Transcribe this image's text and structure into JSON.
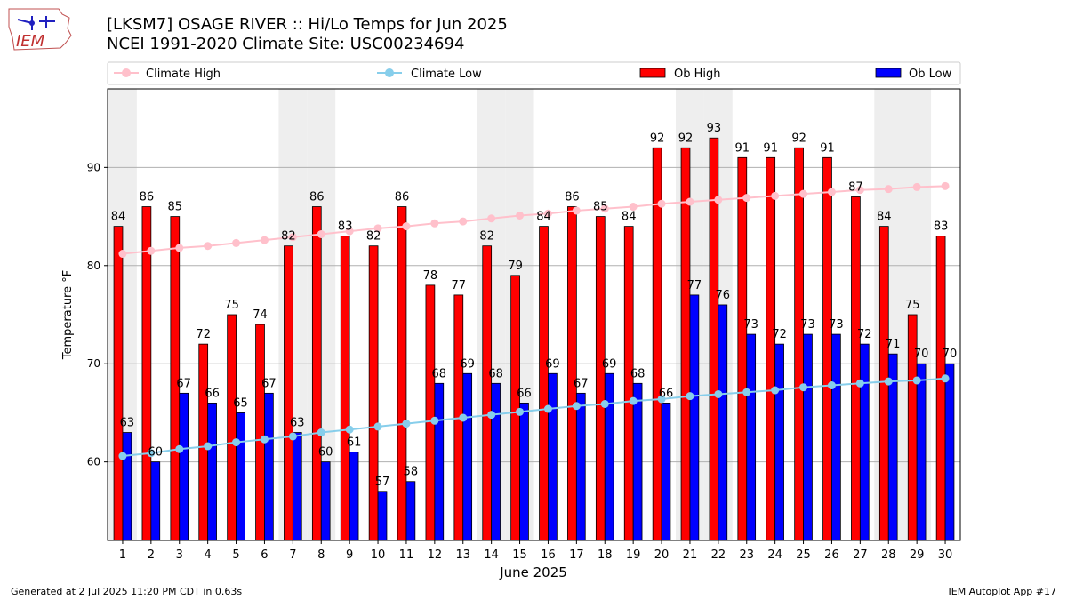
{
  "header": {
    "title_line1": "[LKSM7] OSAGE RIVER :: Hi/Lo Temps for Jun 2025",
    "title_line2": "NCEI 1991-2020 Climate Site: USC00234694",
    "logo_text": "IEM"
  },
  "footer": {
    "generated": "Generated at 2 Jul 2025 11:20 PM CDT in 0.63s",
    "app": "IEM Autoplot App #17"
  },
  "colors": {
    "climate_high": "#ffc0cb",
    "climate_low": "#87ceeb",
    "ob_high": "#ff0000",
    "ob_low": "#0000ff",
    "weekend_shade": "#eeeeee"
  },
  "chart_data": {
    "type": "bar",
    "xlabel": "June 2025",
    "ylabel": "Temperature °F",
    "ylim": [
      52,
      98
    ],
    "yticks": [
      60,
      70,
      80,
      90
    ],
    "grid": "horizontal",
    "legend_position": "top",
    "x": [
      1,
      2,
      3,
      4,
      5,
      6,
      7,
      8,
      9,
      10,
      11,
      12,
      13,
      14,
      15,
      16,
      17,
      18,
      19,
      20,
      21,
      22,
      23,
      24,
      25,
      26,
      27,
      28,
      29,
      30
    ],
    "shaded_days": [
      1,
      7,
      8,
      14,
      15,
      21,
      22,
      28,
      29
    ],
    "series": [
      {
        "name": "Climate High",
        "kind": "line",
        "color_key": "climate_high",
        "values": [
          81.2,
          81.5,
          81.8,
          82.0,
          82.3,
          82.6,
          82.9,
          83.2,
          83.5,
          83.8,
          84.0,
          84.3,
          84.5,
          84.8,
          85.1,
          85.3,
          85.6,
          85.8,
          86.0,
          86.3,
          86.5,
          86.7,
          86.9,
          87.1,
          87.3,
          87.5,
          87.7,
          87.8,
          88.0,
          88.1
        ]
      },
      {
        "name": "Climate Low",
        "kind": "line",
        "color_key": "climate_low",
        "values": [
          60.6,
          60.9,
          61.3,
          61.6,
          62.0,
          62.3,
          62.6,
          63.0,
          63.3,
          63.6,
          63.9,
          64.2,
          64.5,
          64.8,
          65.1,
          65.4,
          65.7,
          65.9,
          66.2,
          66.4,
          66.7,
          66.9,
          67.1,
          67.3,
          67.6,
          67.8,
          68.0,
          68.2,
          68.3,
          68.5
        ]
      },
      {
        "name": "Ob High",
        "kind": "bar",
        "color_key": "ob_high",
        "values": [
          84,
          86,
          85,
          72,
          75,
          74,
          82,
          86,
          83,
          82,
          86,
          78,
          77,
          82,
          79,
          84,
          86,
          85,
          84,
          92,
          92,
          93,
          91,
          91,
          92,
          91,
          87,
          84,
          75,
          83
        ]
      },
      {
        "name": "Ob Low",
        "kind": "bar",
        "color_key": "ob_low",
        "values": [
          63,
          60,
          67,
          66,
          65,
          67,
          63,
          60,
          61,
          57,
          58,
          68,
          69,
          68,
          66,
          69,
          67,
          69,
          68,
          66,
          77,
          76,
          73,
          72,
          73,
          73,
          72,
          71,
          70,
          70
        ]
      }
    ]
  }
}
